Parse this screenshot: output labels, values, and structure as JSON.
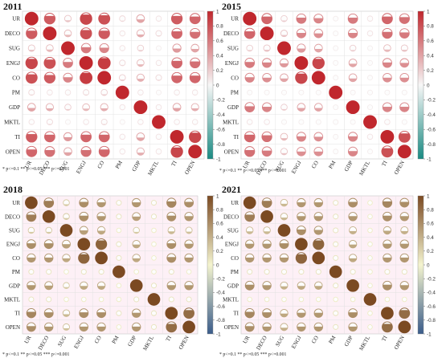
{
  "figure": {
    "note": "* p<=0.1  ** p<=0.05  *** p<=0.001",
    "variables": [
      "UR",
      "DECO",
      "SUG",
      "ENGJ",
      "CO",
      "PM",
      "GDP",
      "MKTL",
      "TI",
      "OPEN"
    ],
    "colorbar_ticks": [
      "1",
      "0.8",
      "0.6",
      "0.4",
      "0.2",
      "0",
      "-0.2",
      "-0.4",
      "-0.6",
      "-0.8",
      "-1"
    ],
    "palettes": {
      "red": {
        "pos": "#c0272d",
        "mid": "#f7f7f7",
        "neg": "#1a8a82"
      },
      "brown": {
        "pos": "#7b4a22",
        "mid": "#f4f4cf",
        "neg": "#3a5c8a"
      }
    }
  },
  "chart_data": [
    {
      "type": "heatmap",
      "title": "2011",
      "palette": "red",
      "x": [
        "UR",
        "DECO",
        "SUG",
        "ENGJ",
        "CO",
        "PM",
        "GDP",
        "MKTL",
        "TI",
        "OPEN"
      ],
      "y": [
        "UR",
        "DECO",
        "SUG",
        "ENGJ",
        "CO",
        "PM",
        "GDP",
        "MKTL",
        "TI",
        "OPEN"
      ],
      "values": [
        [
          1.0,
          0.75,
          0.25,
          0.85,
          0.8,
          0.15,
          0.4,
          0.1,
          0.75,
          0.7
        ],
        [
          0.75,
          1.0,
          0.3,
          0.8,
          0.75,
          0.1,
          0.35,
          0.15,
          0.7,
          0.65
        ],
        [
          0.25,
          0.3,
          1.0,
          0.6,
          0.55,
          0.1,
          0.2,
          0.05,
          0.45,
          0.4
        ],
        [
          0.85,
          0.8,
          0.6,
          1.0,
          0.9,
          0.15,
          0.3,
          0.1,
          0.7,
          0.65
        ],
        [
          0.8,
          0.75,
          0.55,
          0.9,
          1.0,
          0.2,
          0.35,
          0.15,
          0.7,
          0.7
        ],
        [
          0.15,
          0.1,
          0.1,
          0.15,
          0.2,
          1.0,
          0.1,
          0.05,
          0.1,
          0.1
        ],
        [
          0.4,
          0.35,
          0.2,
          0.3,
          0.35,
          0.1,
          1.0,
          0.1,
          0.4,
          0.35
        ],
        [
          0.1,
          0.15,
          0.05,
          0.1,
          0.15,
          0.05,
          0.1,
          1.0,
          0.1,
          0.1
        ],
        [
          0.75,
          0.7,
          0.45,
          0.7,
          0.7,
          0.1,
          0.4,
          0.1,
          1.0,
          0.85
        ],
        [
          0.7,
          0.65,
          0.4,
          0.65,
          0.7,
          0.1,
          0.35,
          0.1,
          0.85,
          1.0
        ]
      ],
      "colorbar": {
        "min": -1,
        "max": 1
      }
    },
    {
      "type": "heatmap",
      "title": "2015",
      "palette": "red",
      "x": [
        "UR",
        "DECO",
        "SUG",
        "ENGJ",
        "CO",
        "PM",
        "GDP",
        "MKTL",
        "TI",
        "OPEN"
      ],
      "y": [
        "UR",
        "DECO",
        "SUG",
        "ENGJ",
        "CO",
        "PM",
        "GDP",
        "MKTL",
        "TI",
        "OPEN"
      ],
      "values": [
        [
          1.0,
          0.7,
          0.2,
          0.6,
          0.55,
          0.05,
          0.6,
          0.1,
          0.7,
          0.65
        ],
        [
          0.7,
          1.0,
          0.25,
          0.55,
          0.5,
          0.05,
          0.55,
          0.1,
          0.65,
          0.6
        ],
        [
          0.2,
          0.25,
          1.0,
          0.45,
          0.4,
          0.05,
          0.2,
          0.05,
          0.3,
          0.25
        ],
        [
          0.6,
          0.55,
          0.45,
          1.0,
          0.85,
          0.05,
          0.4,
          0.05,
          0.55,
          0.5
        ],
        [
          0.55,
          0.5,
          0.4,
          0.85,
          1.0,
          0.05,
          0.4,
          0.05,
          0.5,
          0.5
        ],
        [
          0.05,
          0.05,
          0.05,
          0.05,
          0.05,
          1.0,
          0.05,
          0.05,
          0.05,
          0.05
        ],
        [
          0.6,
          0.55,
          0.2,
          0.4,
          0.4,
          0.05,
          1.0,
          0.05,
          0.55,
          0.55
        ],
        [
          0.1,
          0.1,
          0.05,
          0.05,
          0.05,
          0.05,
          0.05,
          1.0,
          0.1,
          0.05
        ],
        [
          0.7,
          0.65,
          0.3,
          0.55,
          0.5,
          0.05,
          0.55,
          0.1,
          1.0,
          0.8
        ],
        [
          0.65,
          0.6,
          0.25,
          0.5,
          0.5,
          0.05,
          0.55,
          0.05,
          0.8,
          1.0
        ]
      ],
      "colorbar": {
        "min": -1,
        "max": 1
      }
    },
    {
      "type": "heatmap",
      "title": "2018",
      "palette": "brown",
      "x": [
        "UR",
        "DECO",
        "SUG",
        "ENGJ",
        "CO",
        "PM",
        "GDP",
        "MKTL",
        "TI",
        "OPEN"
      ],
      "y": [
        "UR",
        "DECO",
        "SUG",
        "ENGJ",
        "CO",
        "PM",
        "GDP",
        "MKTL",
        "TI",
        "OPEN"
      ],
      "values": [
        [
          1.0,
          0.7,
          0.25,
          0.6,
          0.55,
          0.1,
          0.55,
          0.1,
          0.65,
          0.6
        ],
        [
          0.7,
          1.0,
          0.25,
          0.6,
          0.55,
          0.1,
          0.5,
          0.1,
          0.6,
          0.55
        ],
        [
          0.25,
          0.25,
          1.0,
          0.5,
          0.45,
          0.05,
          0.25,
          0.05,
          0.35,
          0.3
        ],
        [
          0.6,
          0.6,
          0.5,
          1.0,
          0.85,
          0.1,
          0.45,
          0.05,
          0.6,
          0.55
        ],
        [
          0.55,
          0.55,
          0.45,
          0.85,
          1.0,
          0.1,
          0.45,
          0.05,
          0.6,
          0.55
        ],
        [
          0.1,
          0.1,
          0.05,
          0.1,
          0.1,
          1.0,
          0.05,
          0.05,
          0.1,
          0.05
        ],
        [
          0.55,
          0.5,
          0.25,
          0.45,
          0.45,
          0.05,
          1.0,
          0.1,
          0.55,
          0.55
        ],
        [
          0.1,
          0.1,
          0.05,
          0.05,
          0.05,
          0.05,
          0.1,
          1.0,
          0.1,
          0.1
        ],
        [
          0.65,
          0.6,
          0.35,
          0.6,
          0.6,
          0.1,
          0.55,
          0.1,
          1.0,
          0.8
        ],
        [
          0.6,
          0.55,
          0.3,
          0.55,
          0.55,
          0.05,
          0.55,
          0.1,
          0.8,
          1.0
        ]
      ],
      "colorbar": {
        "min": -1,
        "max": 1
      }
    },
    {
      "type": "heatmap",
      "title": "2021",
      "palette": "brown",
      "x": [
        "UR",
        "DECO",
        "SUG",
        "ENGJ",
        "CO",
        "PM",
        "GDP",
        "MKTL",
        "TI",
        "OPEN"
      ],
      "y": [
        "UR",
        "DECO",
        "SUG",
        "ENGJ",
        "CO",
        "PM",
        "GDP",
        "MKTL",
        "TI",
        "OPEN"
      ],
      "values": [
        [
          1.0,
          0.7,
          0.35,
          0.55,
          0.55,
          0.1,
          0.6,
          0.05,
          0.65,
          0.6
        ],
        [
          0.7,
          1.0,
          0.35,
          0.55,
          0.55,
          0.1,
          0.55,
          0.05,
          0.6,
          0.55
        ],
        [
          0.35,
          0.35,
          1.0,
          0.6,
          0.55,
          0.1,
          0.4,
          0.05,
          0.45,
          0.4
        ],
        [
          0.55,
          0.55,
          0.6,
          1.0,
          0.85,
          0.1,
          0.45,
          0.05,
          0.55,
          0.55
        ],
        [
          0.55,
          0.55,
          0.55,
          0.85,
          1.0,
          0.1,
          0.45,
          0.05,
          0.55,
          0.55
        ],
        [
          0.1,
          0.1,
          0.1,
          0.1,
          0.1,
          1.0,
          0.1,
          0.05,
          0.1,
          0.1
        ],
        [
          0.6,
          0.55,
          0.4,
          0.45,
          0.45,
          0.1,
          1.0,
          0.05,
          0.6,
          0.55
        ],
        [
          0.05,
          0.05,
          0.05,
          0.05,
          0.05,
          0.05,
          0.05,
          1.0,
          0.05,
          0.05
        ],
        [
          0.65,
          0.6,
          0.45,
          0.55,
          0.55,
          0.1,
          0.6,
          0.05,
          1.0,
          0.8
        ],
        [
          0.6,
          0.55,
          0.4,
          0.55,
          0.55,
          0.1,
          0.55,
          0.05,
          0.8,
          1.0
        ]
      ],
      "colorbar": {
        "min": -1,
        "max": 1
      }
    }
  ]
}
